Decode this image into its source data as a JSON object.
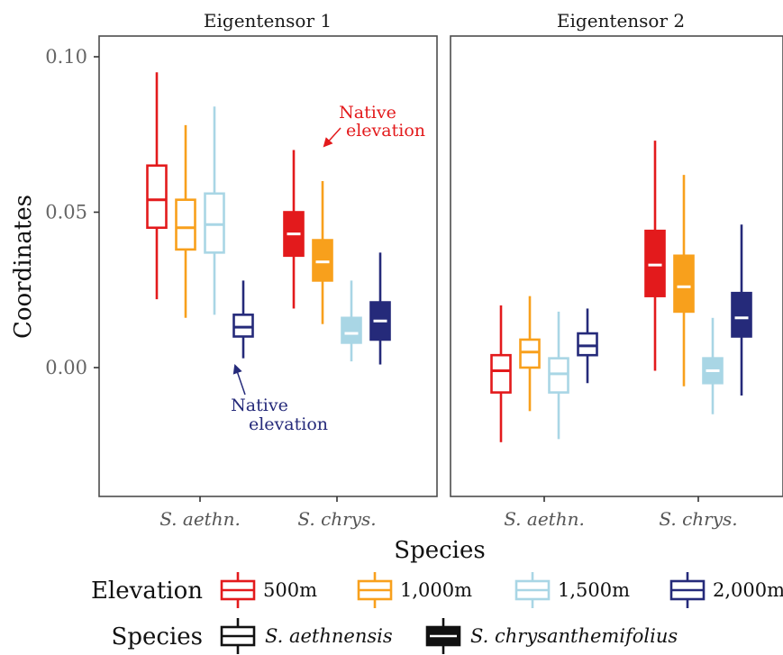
{
  "chart_data": {
    "type": "boxplot",
    "ylabel": "Coordinates",
    "xlabel": "Species",
    "ylim": [
      -0.04,
      0.105
    ],
    "yticks": [
      0.0,
      0.05,
      0.1
    ],
    "ytick_labels": [
      "0.00",
      "0.05",
      "0.10"
    ],
    "categories": [
      "S. aethn.",
      "S. chrys."
    ],
    "panels": [
      {
        "title": "Eigentensor 1",
        "groups": [
          {
            "category": "S. aethn.",
            "boxes": [
              {
                "elevation": "500m",
                "min": 0.022,
                "q1": 0.045,
                "median": 0.054,
                "q3": 0.065,
                "max": 0.095
              },
              {
                "elevation": "1,000m",
                "min": 0.016,
                "q1": 0.038,
                "median": 0.045,
                "q3": 0.054,
                "max": 0.078
              },
              {
                "elevation": "1,500m",
                "min": 0.017,
                "q1": 0.037,
                "median": 0.046,
                "q3": 0.056,
                "max": 0.084
              },
              {
                "elevation": "2,000m",
                "min": 0.003,
                "q1": 0.01,
                "median": 0.013,
                "q3": 0.017,
                "max": 0.028
              }
            ]
          },
          {
            "category": "S. chrys.",
            "boxes": [
              {
                "elevation": "500m",
                "min": 0.019,
                "q1": 0.036,
                "median": 0.043,
                "q3": 0.05,
                "max": 0.07
              },
              {
                "elevation": "1,000m",
                "min": 0.014,
                "q1": 0.028,
                "median": 0.034,
                "q3": 0.041,
                "max": 0.06
              },
              {
                "elevation": "1,500m",
                "min": 0.002,
                "q1": 0.008,
                "median": 0.011,
                "q3": 0.016,
                "max": 0.028
              },
              {
                "elevation": "2,000m",
                "min": 0.001,
                "q1": 0.009,
                "median": 0.015,
                "q3": 0.021,
                "max": 0.037
              }
            ]
          }
        ],
        "annotations": [
          {
            "lines": [
              "Native",
              "elevation"
            ],
            "color": "#e31a1c"
          },
          {
            "lines": [
              "Native",
              "elevation"
            ],
            "color": "#252a7a"
          }
        ]
      },
      {
        "title": "Eigentensor 2",
        "groups": [
          {
            "category": "S. aethn.",
            "boxes": [
              {
                "elevation": "500m",
                "min": -0.024,
                "q1": -0.008,
                "median": -0.001,
                "q3": 0.004,
                "max": 0.02
              },
              {
                "elevation": "1,000m",
                "min": -0.014,
                "q1": 0.0,
                "median": 0.005,
                "q3": 0.009,
                "max": 0.023
              },
              {
                "elevation": "1,500m",
                "min": -0.023,
                "q1": -0.008,
                "median": -0.002,
                "q3": 0.003,
                "max": 0.018
              },
              {
                "elevation": "2,000m",
                "min": -0.005,
                "q1": 0.004,
                "median": 0.007,
                "q3": 0.011,
                "max": 0.019
              }
            ]
          },
          {
            "category": "S. chrys.",
            "boxes": [
              {
                "elevation": "500m",
                "min": -0.001,
                "q1": 0.023,
                "median": 0.033,
                "q3": 0.044,
                "max": 0.073
              },
              {
                "elevation": "1,000m",
                "min": -0.006,
                "q1": 0.018,
                "median": 0.026,
                "q3": 0.036,
                "max": 0.062
              },
              {
                "elevation": "1,500m",
                "min": -0.015,
                "q1": -0.005,
                "median": -0.001,
                "q3": 0.003,
                "max": 0.016
              },
              {
                "elevation": "2,000m",
                "min": -0.009,
                "q1": 0.01,
                "median": 0.016,
                "q3": 0.024,
                "max": 0.046
              }
            ]
          }
        ],
        "annotations": []
      }
    ],
    "fill_rule": "S. chrys. boxes filled, S. aethn. boxes outlined",
    "legend": {
      "placement": "bottom",
      "elevation_title": "Elevation",
      "elevation_items": [
        {
          "label": "500m",
          "color": "#e31a1c"
        },
        {
          "label": "1,000m",
          "color": "#f8a01c"
        },
        {
          "label": "1,500m",
          "color": "#a9d6e5"
        },
        {
          "label": "2,000m",
          "color": "#252a7a"
        }
      ],
      "species_title": "Species",
      "species_items": [
        {
          "label": "S. aethnensis",
          "filled": false
        },
        {
          "label": "S. chrysanthemifolius",
          "filled": true
        }
      ]
    },
    "grid": false
  }
}
